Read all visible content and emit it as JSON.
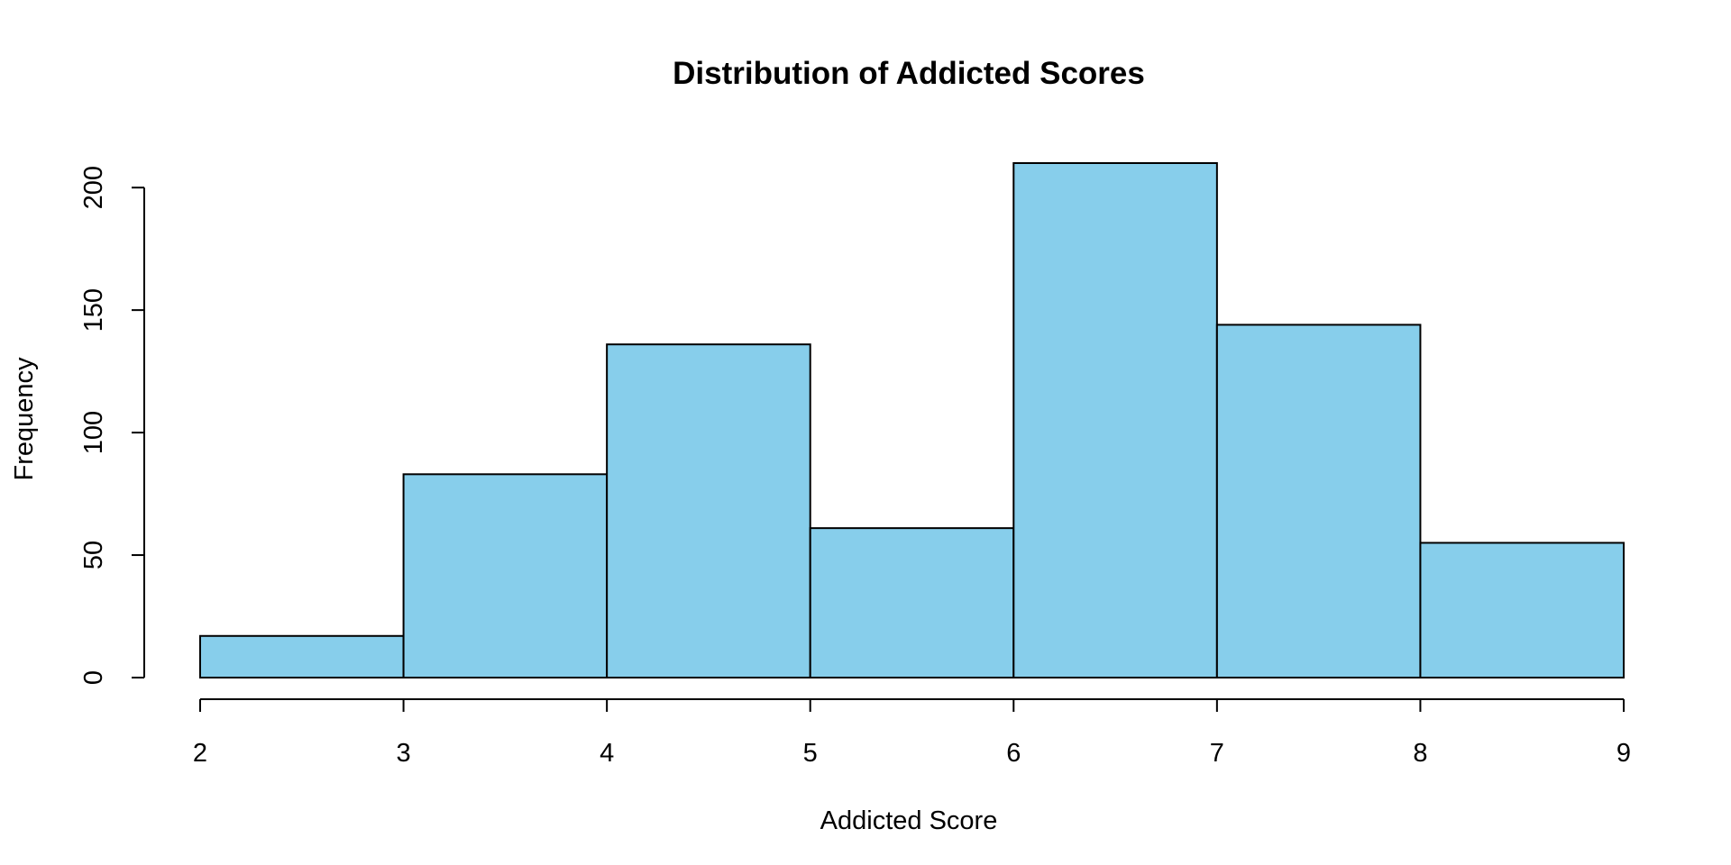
{
  "chart_data": {
    "type": "bar",
    "subtype": "histogram",
    "title": "Distribution of Addicted Scores",
    "xlabel": "Addicted Score",
    "ylabel": "Frequency",
    "bins": [
      {
        "x0": 2,
        "x1": 3,
        "value": 17
      },
      {
        "x0": 3,
        "x1": 4,
        "value": 83
      },
      {
        "x0": 4,
        "x1": 5,
        "value": 136
      },
      {
        "x0": 5,
        "x1": 6,
        "value": 61
      },
      {
        "x0": 6,
        "x1": 7,
        "value": 210
      },
      {
        "x0": 7,
        "x1": 8,
        "value": 144
      },
      {
        "x0": 8,
        "x1": 9,
        "value": 55
      }
    ],
    "xlim": [
      2,
      9
    ],
    "ylim": [
      0,
      210
    ],
    "xticks": [
      2,
      3,
      4,
      5,
      6,
      7,
      8,
      9
    ],
    "yticks": [
      0,
      50,
      100,
      150,
      200
    ],
    "bar_color": "#87CEEB",
    "edge_color": "#000000",
    "grid": false,
    "legend": "none"
  }
}
